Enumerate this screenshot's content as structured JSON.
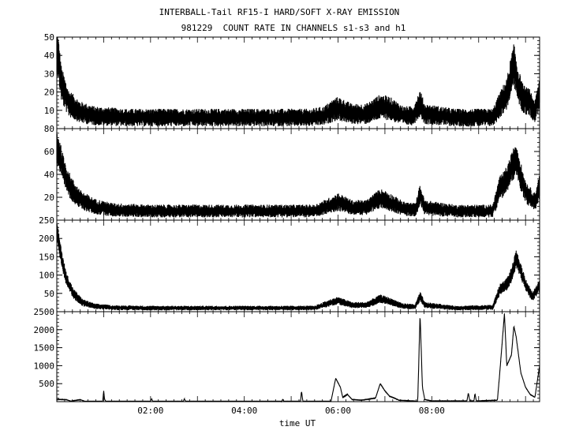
{
  "title_line1": "INTERBALL-Tail RF15-I HARD/SOFT X-RAY EMISSION",
  "title_line2": "981229  COUNT RATE IN CHANNELS s1-s3 and h1",
  "chart_data": {
    "type": "line",
    "xlabel": "time UT",
    "xlim_hours": [
      0.0,
      10.3
    ],
    "x_tick_labels": [
      "02:00",
      "04:00",
      "06:00",
      "08:00"
    ],
    "x_tick_hours": [
      2,
      4,
      6,
      8
    ],
    "panels": [
      {
        "channel": "s1",
        "ylim": [
          0,
          50
        ],
        "y_ticks": [
          10,
          20,
          30,
          40,
          50
        ],
        "noise": 3,
        "points": [
          [
            0.0,
            45
          ],
          [
            0.1,
            24
          ],
          [
            0.25,
            14
          ],
          [
            0.5,
            9
          ],
          [
            0.8,
            7
          ],
          [
            1.5,
            6
          ],
          [
            2.5,
            6
          ],
          [
            3.5,
            6
          ],
          [
            4.5,
            6
          ],
          [
            5.4,
            6
          ],
          [
            5.7,
            7
          ],
          [
            5.9,
            10
          ],
          [
            6.0,
            11
          ],
          [
            6.3,
            8
          ],
          [
            6.6,
            8
          ],
          [
            6.9,
            12
          ],
          [
            7.1,
            11
          ],
          [
            7.4,
            7
          ],
          [
            7.6,
            7
          ],
          [
            7.75,
            14
          ],
          [
            7.85,
            8
          ],
          [
            8.5,
            6
          ],
          [
            9.3,
            6
          ],
          [
            9.5,
            15
          ],
          [
            9.6,
            19
          ],
          [
            9.75,
            35
          ],
          [
            9.85,
            23
          ],
          [
            9.95,
            16
          ],
          [
            10.1,
            14
          ],
          [
            10.2,
            9
          ],
          [
            10.3,
            20
          ]
        ]
      },
      {
        "channel": "s2",
        "ylim": [
          0,
          80
        ],
        "y_ticks": [
          20,
          40,
          60,
          80
        ],
        "noise": 3,
        "points": [
          [
            0.0,
            65
          ],
          [
            0.15,
            42
          ],
          [
            0.3,
            28
          ],
          [
            0.5,
            18
          ],
          [
            0.8,
            12
          ],
          [
            1.2,
            9
          ],
          [
            2.0,
            8
          ],
          [
            3.0,
            8
          ],
          [
            4.0,
            8
          ],
          [
            5.5,
            8
          ],
          [
            5.9,
            14
          ],
          [
            6.0,
            16
          ],
          [
            6.3,
            11
          ],
          [
            6.6,
            11
          ],
          [
            6.9,
            19
          ],
          [
            7.05,
            17
          ],
          [
            7.4,
            10
          ],
          [
            7.65,
            9
          ],
          [
            7.75,
            22
          ],
          [
            7.85,
            11
          ],
          [
            8.5,
            8
          ],
          [
            9.3,
            8
          ],
          [
            9.45,
            28
          ],
          [
            9.55,
            32
          ],
          [
            9.65,
            40
          ],
          [
            9.8,
            55
          ],
          [
            9.9,
            38
          ],
          [
            10.0,
            25
          ],
          [
            10.1,
            20
          ],
          [
            10.2,
            16
          ],
          [
            10.3,
            30
          ]
        ]
      },
      {
        "channel": "s3",
        "ylim": [
          0,
          250
        ],
        "y_ticks": [
          50,
          100,
          150,
          200,
          250
        ],
        "noise": 3,
        "points": [
          [
            0.0,
            220
          ],
          [
            0.08,
            160
          ],
          [
            0.2,
            90
          ],
          [
            0.35,
            50
          ],
          [
            0.55,
            25
          ],
          [
            0.8,
            15
          ],
          [
            1.2,
            11
          ],
          [
            2.0,
            10
          ],
          [
            3.0,
            10
          ],
          [
            4.0,
            10
          ],
          [
            5.5,
            10
          ],
          [
            5.9,
            27
          ],
          [
            6.0,
            30
          ],
          [
            6.3,
            18
          ],
          [
            6.6,
            18
          ],
          [
            6.9,
            35
          ],
          [
            7.05,
            30
          ],
          [
            7.4,
            15
          ],
          [
            7.65,
            14
          ],
          [
            7.75,
            42
          ],
          [
            7.85,
            18
          ],
          [
            8.5,
            10
          ],
          [
            9.3,
            12
          ],
          [
            9.45,
            60
          ],
          [
            9.6,
            75
          ],
          [
            9.7,
            100
          ],
          [
            9.8,
            145
          ],
          [
            9.9,
            110
          ],
          [
            10.0,
            75
          ],
          [
            10.15,
            40
          ],
          [
            10.3,
            70
          ]
        ]
      },
      {
        "channel": "h1",
        "ylim": [
          0,
          2500
        ],
        "y_ticks": [
          500,
          1000,
          1500,
          2000,
          2500
        ],
        "noise": 0.6,
        "points": [
          [
            0.0,
            60
          ],
          [
            0.1,
            60
          ],
          [
            0.2,
            55
          ],
          [
            0.3,
            15
          ],
          [
            0.5,
            55
          ],
          [
            0.6,
            10
          ],
          [
            0.98,
            10
          ],
          [
            1.0,
            300
          ],
          [
            1.02,
            60
          ],
          [
            1.05,
            10
          ],
          [
            2.0,
            10
          ],
          [
            2.02,
            80
          ],
          [
            2.05,
            10
          ],
          [
            2.7,
            10
          ],
          [
            2.72,
            80
          ],
          [
            2.75,
            10
          ],
          [
            4.8,
            10
          ],
          [
            4.82,
            70
          ],
          [
            4.85,
            10
          ],
          [
            5.2,
            10
          ],
          [
            5.22,
            300
          ],
          [
            5.25,
            10
          ],
          [
            5.85,
            10
          ],
          [
            5.95,
            650
          ],
          [
            6.05,
            400
          ],
          [
            6.1,
            120
          ],
          [
            6.2,
            200
          ],
          [
            6.3,
            60
          ],
          [
            6.5,
            40
          ],
          [
            6.8,
            100
          ],
          [
            6.9,
            500
          ],
          [
            7.0,
            300
          ],
          [
            7.1,
            150
          ],
          [
            7.2,
            100
          ],
          [
            7.3,
            40
          ],
          [
            7.6,
            20
          ],
          [
            7.7,
            10
          ],
          [
            7.75,
            2450
          ],
          [
            7.8,
            400
          ],
          [
            7.85,
            60
          ],
          [
            8.0,
            20
          ],
          [
            8.75,
            20
          ],
          [
            8.78,
            250
          ],
          [
            8.81,
            20
          ],
          [
            8.9,
            20
          ],
          [
            8.92,
            230
          ],
          [
            8.95,
            20
          ],
          [
            9.4,
            40
          ],
          [
            9.45,
            800
          ],
          [
            9.55,
            2450
          ],
          [
            9.6,
            1000
          ],
          [
            9.7,
            1300
          ],
          [
            9.75,
            2100
          ],
          [
            9.8,
            1800
          ],
          [
            9.9,
            800
          ],
          [
            10.0,
            400
          ],
          [
            10.1,
            200
          ],
          [
            10.2,
            120
          ],
          [
            10.3,
            1000
          ]
        ]
      }
    ]
  }
}
